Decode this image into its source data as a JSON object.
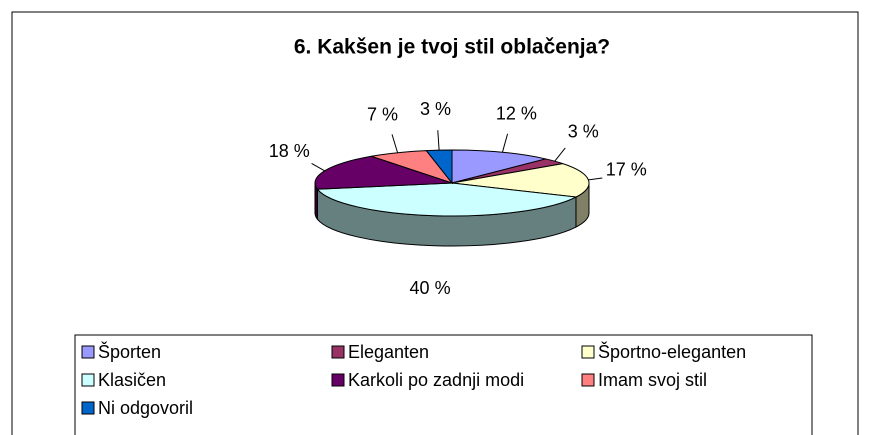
{
  "chart_data": {
    "type": "pie3d",
    "title": "6. Kakšen je tvoj stil oblačenja?",
    "categories": [
      "Športen",
      "Eleganten",
      "Športno-eleganten",
      "Klasičen",
      "Karkoli po zadnji modi",
      "Imam svoj stil",
      "Ni odgovoril"
    ],
    "values": [
      12,
      3,
      17,
      40,
      18,
      7,
      3
    ],
    "value_labels": [
      "12 %",
      "3 %",
      "17 %",
      "40 %",
      "18 %",
      "7 %",
      "3 %"
    ],
    "colors": [
      "#9999ff",
      "#993366",
      "#ffffcc",
      "#ccffff",
      "#660066",
      "#ff8080",
      "#0066cc"
    ],
    "legend": "bottom"
  }
}
